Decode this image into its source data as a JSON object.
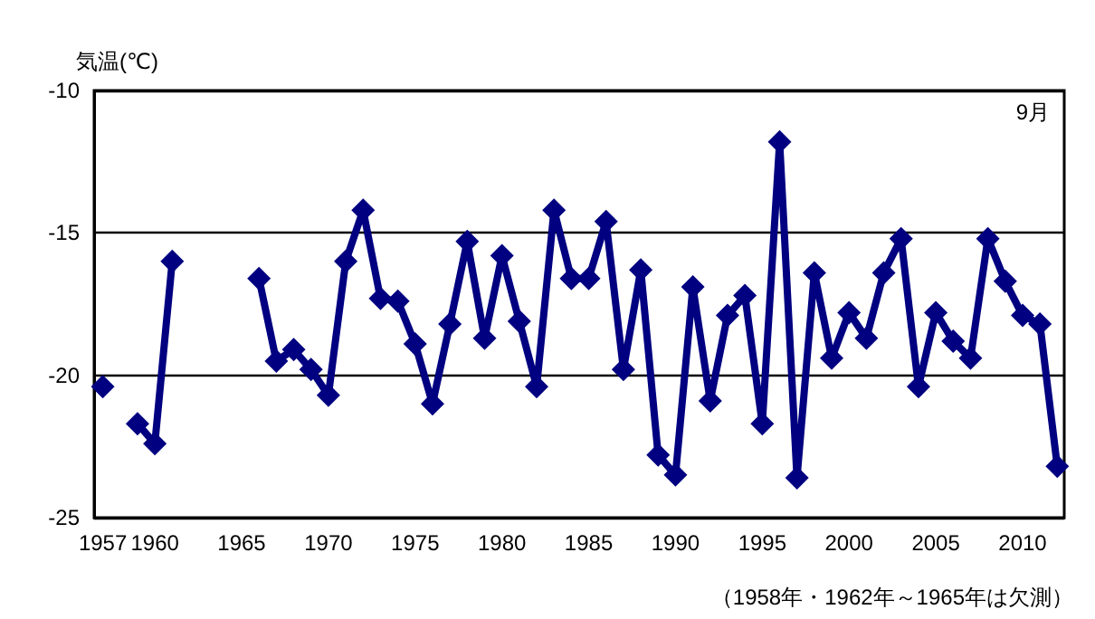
{
  "chart_data": {
    "type": "line",
    "ylabel": "気温(℃)",
    "annotations": [
      "9月",
      "（1958年・1962年～1965年は欠測）"
    ],
    "x": [
      1957,
      1958,
      1959,
      1960,
      1961,
      1962,
      1963,
      1964,
      1965,
      1966,
      1967,
      1968,
      1969,
      1970,
      1971,
      1972,
      1973,
      1974,
      1975,
      1976,
      1977,
      1978,
      1979,
      1980,
      1981,
      1982,
      1983,
      1984,
      1985,
      1986,
      1987,
      1988,
      1989,
      1990,
      1991,
      1992,
      1993,
      1994,
      1995,
      1996,
      1997,
      1998,
      1999,
      2000,
      2001,
      2002,
      2003,
      2004,
      2005,
      2006,
      2007,
      2008,
      2009,
      2010,
      2011,
      2012
    ],
    "series": [
      {
        "color": "#000080",
        "values": [
          -20.4,
          null,
          -21.7,
          -22.4,
          -16.0,
          null,
          null,
          null,
          null,
          -16.6,
          -19.5,
          -19.1,
          -19.8,
          -20.7,
          -16.0,
          -14.2,
          -17.3,
          -17.4,
          -18.9,
          -21.0,
          -18.2,
          -15.3,
          -18.7,
          -15.8,
          -18.1,
          -20.4,
          -14.2,
          -16.6,
          -16.6,
          -14.6,
          -19.8,
          -16.3,
          -22.8,
          -23.5,
          -16.9,
          -20.9,
          -17.9,
          -17.2,
          -21.7,
          -11.8,
          -23.6,
          -16.4,
          -19.4,
          -17.8,
          -18.7,
          -16.4,
          -15.2,
          -20.4,
          -17.8,
          -18.8,
          -19.4,
          -15.2,
          -16.7,
          -17.9,
          -18.2,
          -23.2
        ]
      }
    ],
    "xlim": [
      1956.5,
      2012.4
    ],
    "xticks": [
      1957,
      1960,
      1965,
      1970,
      1975,
      1980,
      1985,
      1990,
      1995,
      2000,
      2005,
      2010
    ],
    "ylim": [
      -25,
      -10
    ],
    "yticks": [
      -25,
      -20,
      -15,
      -10
    ],
    "grid": "y",
    "marker": "diamond",
    "line_style": "solid"
  }
}
